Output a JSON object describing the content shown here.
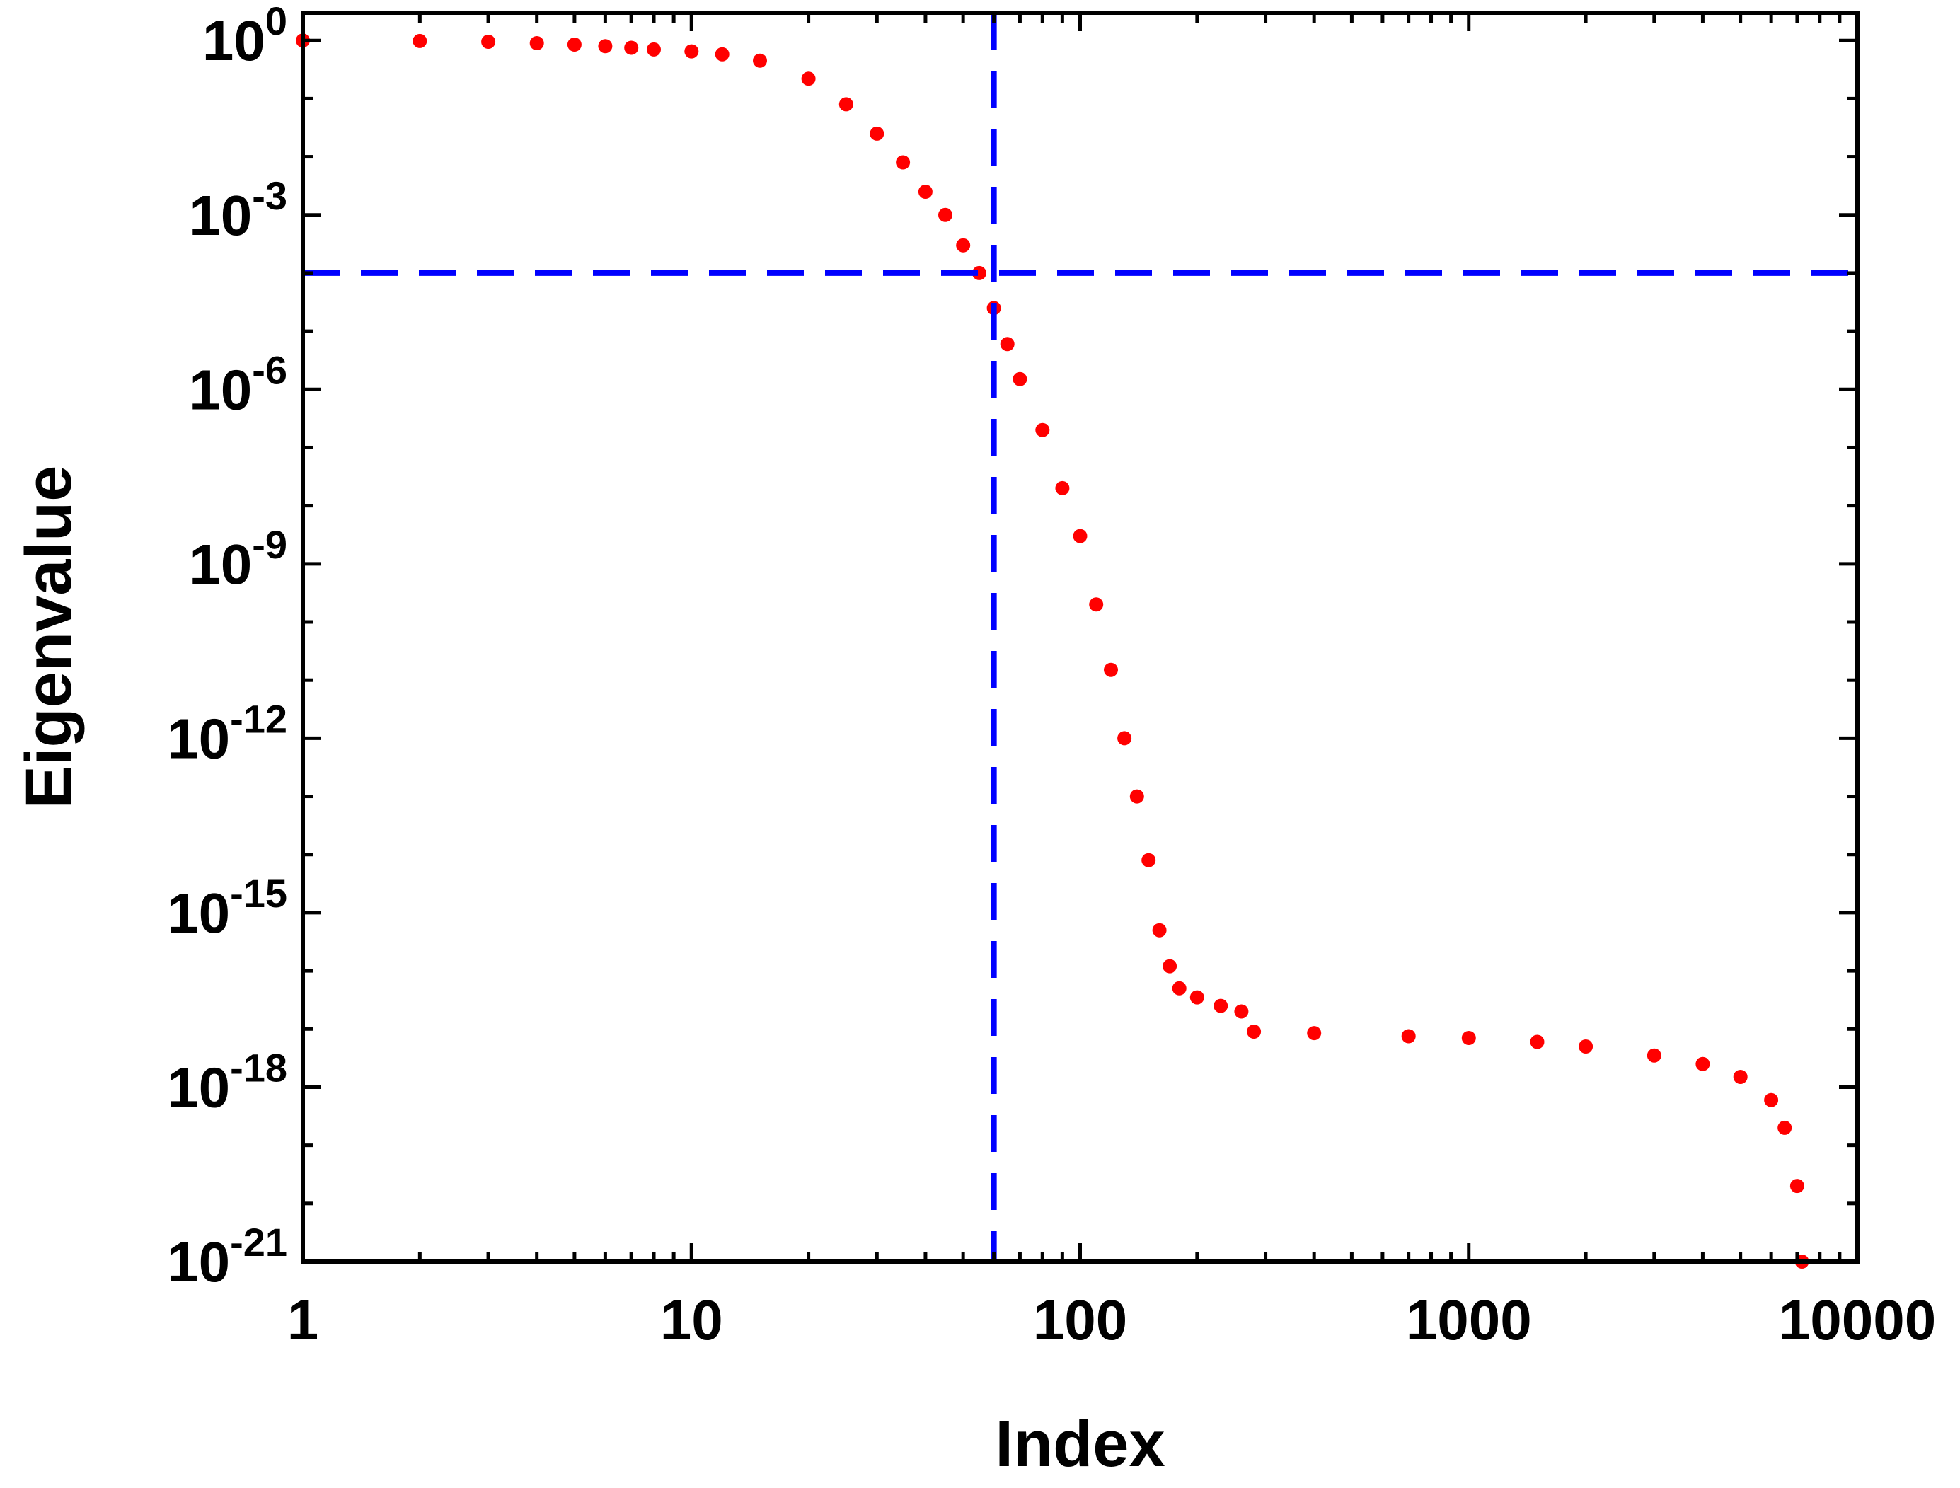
{
  "chart_data": {
    "type": "scatter",
    "title": "",
    "xlabel": "Index",
    "ylabel": "Eigenvalue",
    "x_scale": "log",
    "y_scale": "log",
    "xlim": [
      1,
      10000
    ],
    "ylim": [
      1e-21,
      3
    ],
    "x_ticks": [
      {
        "value": 1,
        "label": "1"
      },
      {
        "value": 10,
        "label": "10"
      },
      {
        "value": 100,
        "label": "100"
      },
      {
        "value": 1000,
        "label": "1000"
      },
      {
        "value": 10000,
        "label": "10000"
      }
    ],
    "y_ticks": [
      {
        "value": 1,
        "base": "10",
        "exp": "0"
      },
      {
        "value": 0.001,
        "base": "10",
        "exp": "-3"
      },
      {
        "value": 1e-06,
        "base": "10",
        "exp": "-6"
      },
      {
        "value": 1e-09,
        "base": "10",
        "exp": "-9"
      },
      {
        "value": 1e-12,
        "base": "10",
        "exp": "-12"
      },
      {
        "value": 1e-15,
        "base": "10",
        "exp": "-15"
      },
      {
        "value": 1e-18,
        "base": "10",
        "exp": "-18"
      },
      {
        "value": 1e-21,
        "base": "10",
        "exp": "-21"
      }
    ],
    "grid": false,
    "series": [
      {
        "color": "#ff0000",
        "x": [
          1,
          2,
          3,
          4,
          5,
          6,
          7,
          8,
          10,
          12,
          15,
          20,
          25,
          30,
          35,
          40,
          45,
          50,
          55,
          60,
          65,
          70,
          80,
          90,
          100,
          110,
          120,
          130,
          140,
          150,
          160,
          170,
          180,
          200,
          230,
          260,
          280,
          400,
          700,
          1000,
          1500,
          2000,
          3000,
          4000,
          5000,
          6000,
          6500,
          7000,
          7200,
          7300
        ],
        "y": [
          1,
          0.98,
          0.95,
          0.9,
          0.85,
          0.8,
          0.75,
          0.7,
          0.65,
          0.58,
          0.45,
          0.22,
          0.08,
          0.025,
          0.008,
          0.0025,
          0.001,
          0.0003,
          0.0001,
          2.5e-05,
          6e-06,
          1.5e-06,
          2e-07,
          2e-08,
          3e-09,
          2e-10,
          1.5e-11,
          1e-12,
          1e-13,
          8e-15,
          5e-16,
          1.2e-16,
          5e-17,
          3.5e-17,
          2.5e-17,
          2e-17,
          9e-18,
          8.5e-18,
          7.5e-18,
          7e-18,
          6e-18,
          5e-18,
          3.5e-18,
          2.5e-18,
          1.5e-18,
          6e-19,
          2e-19,
          2e-20,
          1e-21,
          3e-22
        ]
      }
    ],
    "reference_lines": [
      {
        "orientation": "vertical",
        "value": 60,
        "color": "#0000ff",
        "style": "dashed"
      },
      {
        "orientation": "horizontal",
        "value": 0.0001,
        "color": "#0000ff",
        "style": "dashed"
      }
    ]
  }
}
